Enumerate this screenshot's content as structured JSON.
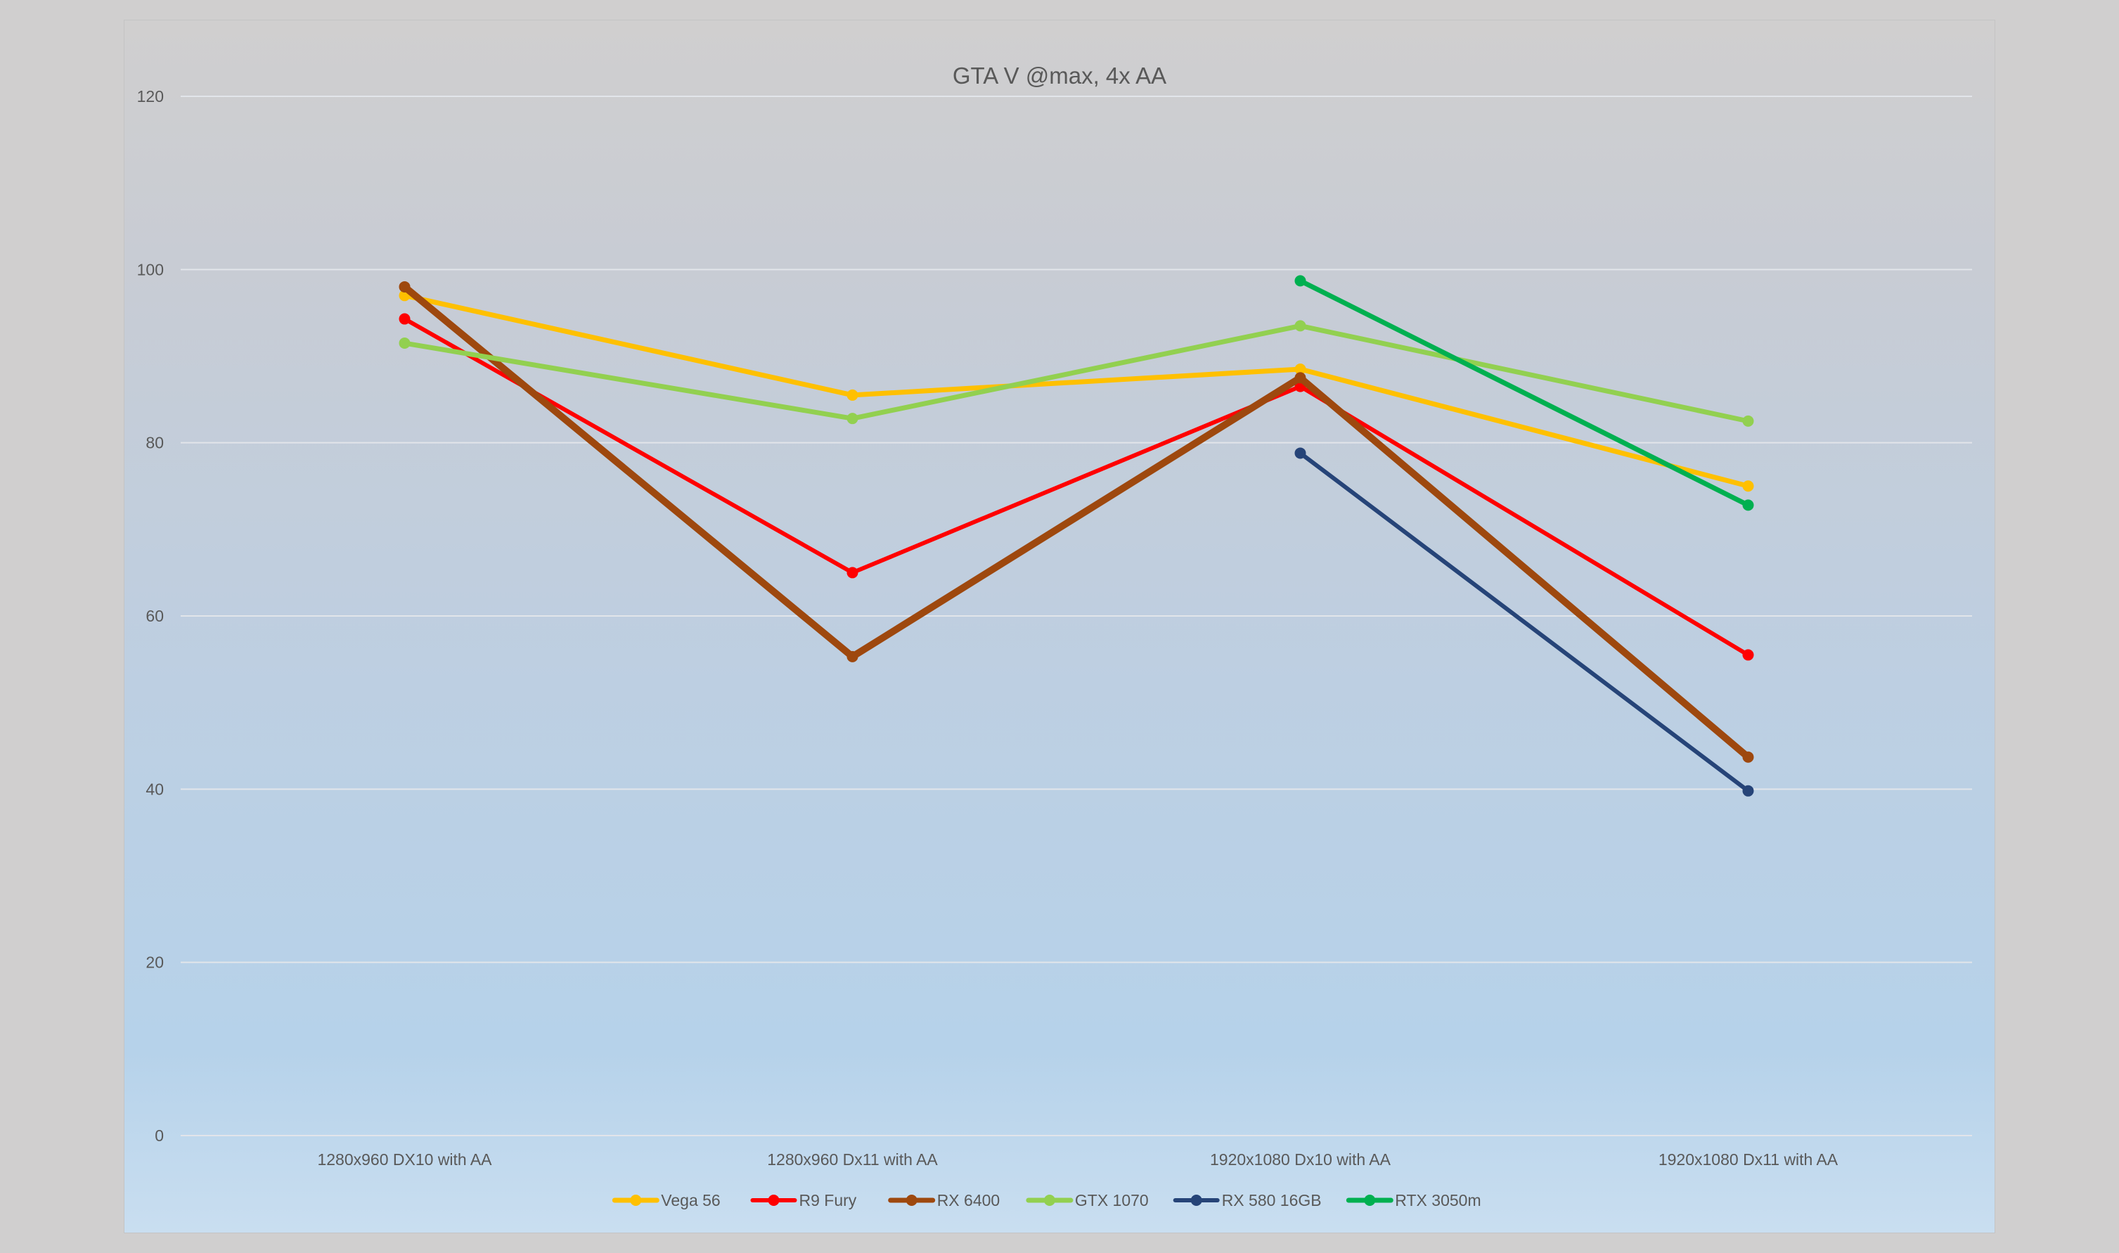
{
  "chart_data": {
    "type": "line",
    "title": "GTA V @max, 4x AA",
    "xlabel": "",
    "ylabel": "",
    "ylim": [
      0,
      120
    ],
    "yticks": [
      0,
      20,
      40,
      60,
      80,
      100,
      120
    ],
    "grid": true,
    "legend_position": "bottom",
    "categories": [
      "1280x960 DX10 with AA",
      "1280x960 Dx11 with AA",
      "1920x1080 Dx10 with AA",
      "1920x1080 Dx11 with AA"
    ],
    "series": [
      {
        "name": "Vega 56",
        "color": "#FFC000",
        "width": 7,
        "values": [
          97,
          85.5,
          88.5,
          75
        ]
      },
      {
        "name": "R9 Fury",
        "color": "#FF0000",
        "width": 6,
        "values": [
          94.3,
          65,
          86.5,
          55.5
        ]
      },
      {
        "name": "RX 6400",
        "color": "#9E480E",
        "width": 10,
        "values": [
          98,
          55.3,
          87.5,
          43.7
        ]
      },
      {
        "name": "GTX 1070",
        "color": "#92D050",
        "width": 7,
        "values": [
          91.5,
          82.8,
          93.5,
          82.5
        ]
      },
      {
        "name": "RX 580 16GB",
        "color": "#264478",
        "width": 6,
        "values": [
          null,
          null,
          78.8,
          39.8
        ]
      },
      {
        "name": "RTX 3050m",
        "color": "#00B050",
        "width": 7,
        "values": [
          null,
          null,
          98.7,
          72.8
        ]
      }
    ]
  }
}
